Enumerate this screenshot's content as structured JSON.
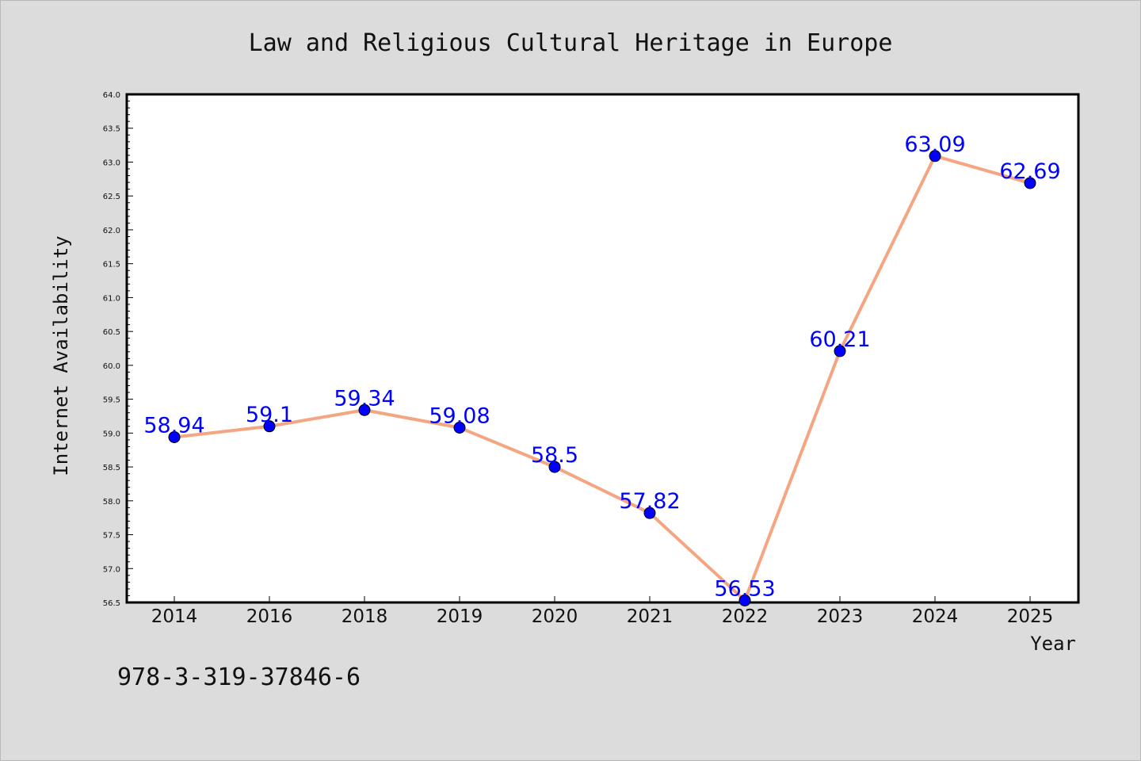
{
  "chart_data": {
    "type": "line",
    "title": "Law and Religious Cultural Heritage in Europe",
    "xlabel": "Year",
    "ylabel": "Internet Availability",
    "categories": [
      "2014",
      "2016",
      "2018",
      "2019",
      "2020",
      "2021",
      "2022",
      "2023",
      "2024",
      "2025"
    ],
    "series": [
      {
        "values": [
          58.94,
          59.1,
          59.34,
          59.08,
          58.5,
          57.82,
          56.53,
          60.21,
          63.09,
          62.69
        ],
        "labels": [
          "58.94",
          "59.1",
          "59.34",
          "59.08",
          "58.5",
          "57.82",
          "56.53",
          "60.21",
          "63.09",
          "62.69"
        ]
      }
    ],
    "ylim": [
      56.5,
      64.0
    ],
    "yticks": [
      "56.5",
      "57.0",
      "57.5",
      "58.0",
      "58.5",
      "59.0",
      "59.5",
      "60.0",
      "60.5",
      "61.0",
      "61.5",
      "62.0",
      "62.5",
      "63.0",
      "63.5",
      "64.0"
    ],
    "grid": false,
    "legend": "none",
    "colors": {
      "line": "#f4a582",
      "marker": "#0000ff",
      "label": "#0000ff",
      "background": "#dcdcdc",
      "plot_area": "#ffffff"
    }
  },
  "footnote": "978-3-319-37846-6"
}
